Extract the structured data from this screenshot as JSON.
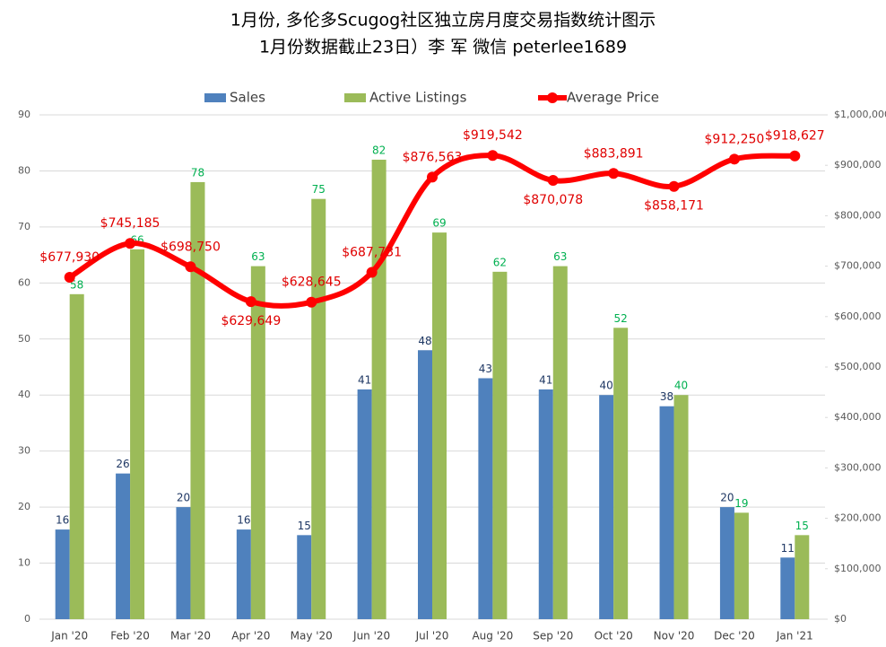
{
  "chart_data": {
    "type": "bar-line",
    "title": "1月份, 多伦多Scugog社区独立房月度交易指数统计图示",
    "subtitle": "1月份数据截止23日）李 军 微信 peterlee1689",
    "categories": [
      "Jan '20",
      "Feb '20",
      "Mar '20",
      "Apr '20",
      "May '20",
      "Jun '20",
      "Jul '20",
      "Aug '20",
      "Sep '20",
      "Oct '20",
      "Nov '20",
      "Dec '20",
      "Jan '21"
    ],
    "series": [
      {
        "name": "Sales",
        "type": "bar",
        "color": "#4f81bd",
        "label_color": "#1f3864",
        "values": [
          16,
          26,
          20,
          16,
          15,
          41,
          48,
          43,
          41,
          40,
          38,
          20,
          11
        ]
      },
      {
        "name": "Active Listings",
        "type": "bar",
        "color": "#9bbb59",
        "label_color": "#00b050",
        "values": [
          58,
          66,
          78,
          63,
          75,
          82,
          69,
          62,
          63,
          52,
          40,
          19,
          15
        ]
      },
      {
        "name": "Average Price",
        "type": "line",
        "axis": "y2",
        "color": "#ff0000",
        "values": [
          677930,
          745185,
          698750,
          629649,
          628645,
          687731,
          876563,
          919542,
          870078,
          883891,
          858171,
          912250,
          918627
        ],
        "value_labels": [
          "$677,930",
          "$745,185",
          "$698,750",
          "$629,649",
          "$628,645",
          "$687,731",
          "$876,563",
          "$919,542",
          "$870,078",
          "$883,891",
          "$858,171",
          "$912,250",
          "$918,627"
        ]
      }
    ],
    "ylim": [
      0,
      90
    ],
    "yticks": [
      0,
      10,
      20,
      30,
      40,
      50,
      60,
      70,
      80,
      90
    ],
    "y2lim": [
      0,
      1000000
    ],
    "y2ticks": [
      {
        "value": 0,
        "label": "$0"
      },
      {
        "value": 100000,
        "label": "$100,000"
      },
      {
        "value": 200000,
        "label": "$200,000"
      },
      {
        "value": 300000,
        "label": "$300,000"
      },
      {
        "value": 400000,
        "label": "$400,000"
      },
      {
        "value": 500000,
        "label": "$500,000"
      },
      {
        "value": 600000,
        "label": "$600,000"
      },
      {
        "value": 700000,
        "label": "$700,000"
      },
      {
        "value": 800000,
        "label": "$800,000"
      },
      {
        "value": 900000,
        "label": "$900,000"
      },
      {
        "value": 1000000,
        "label": "$1,000,000"
      }
    ],
    "grid": true,
    "legend": "top"
  }
}
